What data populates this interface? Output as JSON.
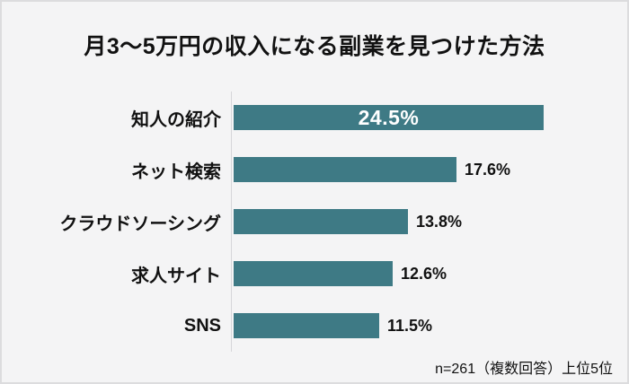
{
  "page": {
    "background_color": "#f4f4f5",
    "border_color": "#dcdcde",
    "text_color": "#111111"
  },
  "chart_data": {
    "type": "bar",
    "orientation": "horizontal",
    "title": "月3〜5万円の収入になる副業を見つけた方法",
    "categories": [
      "知人の紹介",
      "ネット検索",
      "クラウドソーシング",
      "求人サイト",
      "SNS"
    ],
    "values": [
      24.5,
      17.6,
      13.8,
      12.6,
      11.5
    ],
    "value_labels": [
      "24.5%",
      "17.6%",
      "13.8%",
      "12.6%",
      "11.5%"
    ],
    "value_label_positions": [
      "inside",
      "outside",
      "outside",
      "outside",
      "outside"
    ],
    "bar_color": "#3e7a85",
    "inside_label_color": "#ffffff",
    "outside_label_color": "#111111",
    "xlim": [
      0,
      25
    ],
    "grid": false,
    "legend": false,
    "axis_line": "left-vertical-only",
    "note": "n=261（複数回答）上位5位"
  }
}
